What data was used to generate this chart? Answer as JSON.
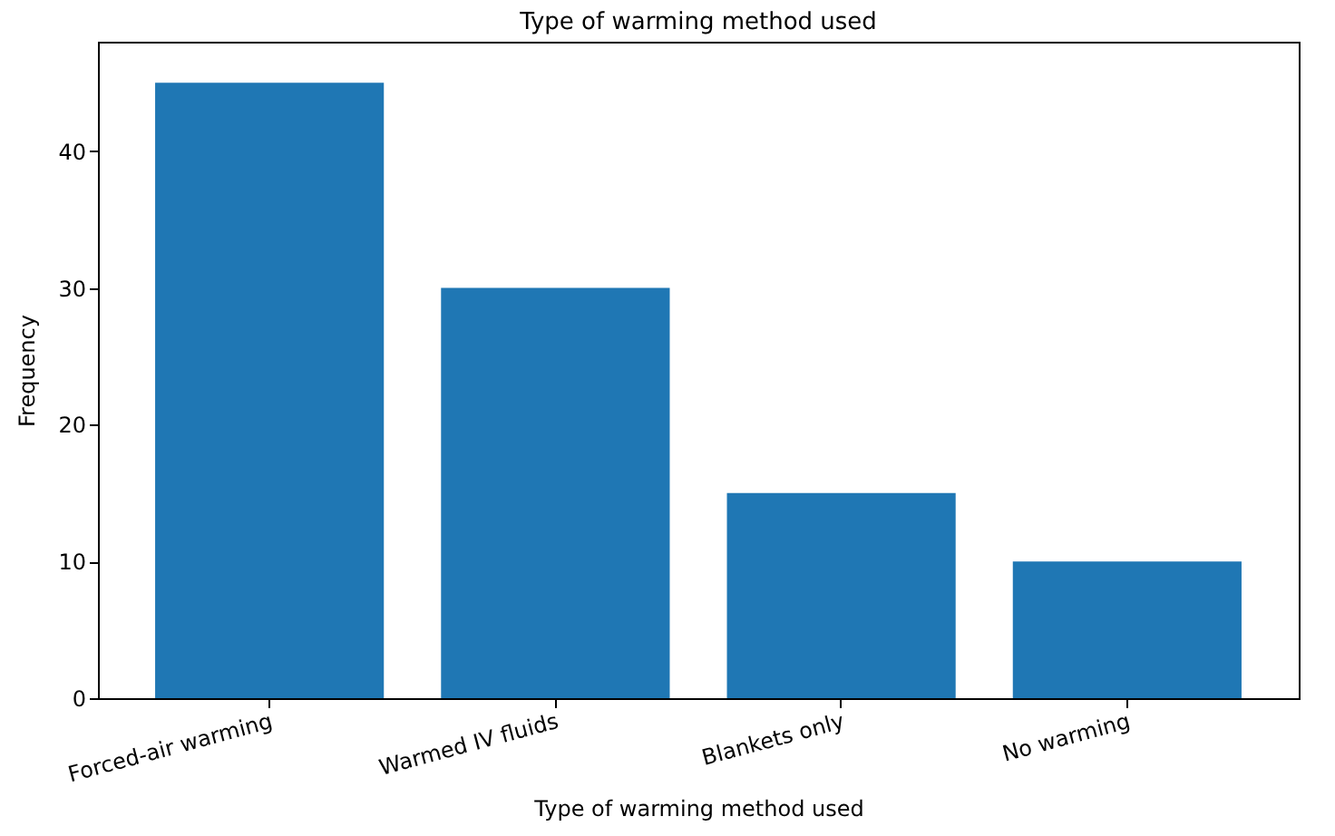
{
  "chart_data": {
    "type": "bar",
    "title": "Type of warming method used",
    "xlabel": "Type of warming method used",
    "ylabel": "Frequency",
    "categories": [
      "Forced-air warming",
      "Warmed IV fluids",
      "Blankets only",
      "No warming"
    ],
    "values": [
      45,
      30,
      15,
      10
    ],
    "color": "#1f77b4",
    "ylim": [
      0,
      48
    ],
    "yticks": [
      0,
      10,
      20,
      30,
      40
    ],
    "grid": false
  }
}
